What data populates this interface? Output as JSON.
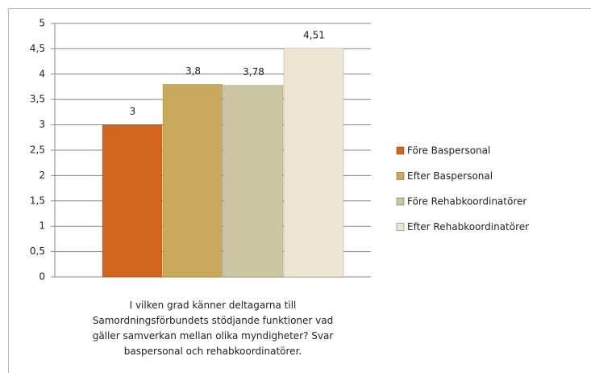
{
  "chart_data": {
    "type": "bar",
    "categories": [
      "I vilken grad känner deltagarna till Samordningsförbundets stödjande funktioner vad gäller samverkan mellan olika myndigheter? Svar baspersonal och rehabkoordinatörer."
    ],
    "series": [
      {
        "name": "Före Baspersonal",
        "color": "#d2661c",
        "values": [
          3
        ],
        "value_labels": [
          "3"
        ]
      },
      {
        "name": "Efter Baspersonal",
        "color": "#c9a95c",
        "values": [
          3.8
        ],
        "value_labels": [
          "3,8"
        ]
      },
      {
        "name": "Före Rehabkoordinatörer",
        "color": "#ccc5a2",
        "values": [
          3.78
        ],
        "value_labels": [
          "3,78"
        ]
      },
      {
        "name": "Efter Rehabkoordinatörer",
        "color": "#ece6d2",
        "values": [
          4.51
        ],
        "value_labels": [
          "4,51"
        ]
      }
    ],
    "ylim": [
      0,
      5
    ],
    "yticks": [
      0,
      {
        "value": 0.5,
        "label": "0,5"
      },
      1,
      {
        "value": 1.5,
        "label": "1,5"
      },
      2,
      {
        "value": 2.5,
        "label": "2,5"
      },
      3,
      {
        "value": 3.5,
        "label": "3,5"
      },
      4,
      {
        "value": 4.5,
        "label": "4,5"
      },
      5
    ],
    "grid": true,
    "legend": "right"
  }
}
